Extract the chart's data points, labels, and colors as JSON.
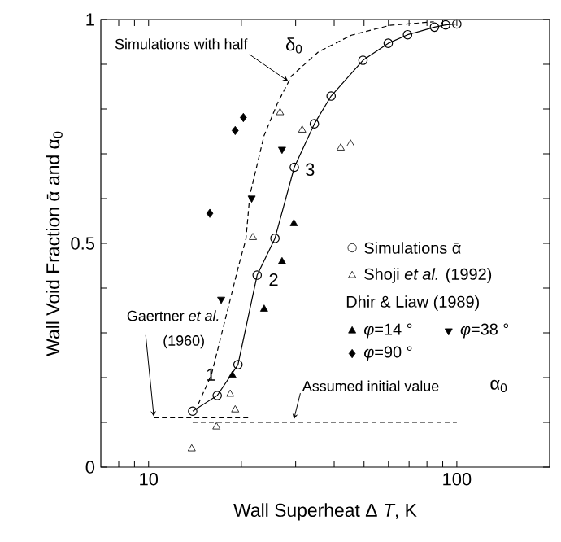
{
  "chart_data": {
    "type": "line",
    "xlabel": "Wall Superheat  Δ *T*, K",
    "ylabel": "Wall Void Fraction   ᾱ and  α$_{0}$",
    "log": "x",
    "xlim": [
      7,
      200
    ],
    "xticks": [
      {
        "value": 8,
        "label": null
      },
      {
        "value": 9,
        "label": null
      },
      10,
      {
        "value": 20,
        "label": null
      },
      {
        "value": 30,
        "label": null
      },
      {
        "value": 40,
        "label": null
      },
      {
        "value": 50,
        "label": null
      },
      {
        "value": 60,
        "label": null
      },
      {
        "value": 70,
        "label": null
      },
      {
        "value": 80,
        "label": null
      },
      {
        "value": 90,
        "label": null
      },
      100
    ],
    "ylim": [
      0,
      1
    ],
    "yticks": [
      0,
      {
        "value": 0.1,
        "label": null
      },
      {
        "value": 0.2,
        "label": null
      },
      {
        "value": 0.3,
        "label": null
      },
      {
        "value": 0.4,
        "label": null
      },
      0.5,
      {
        "value": 0.6,
        "label": null
      },
      {
        "value": 0.7,
        "label": null
      },
      {
        "value": 0.8,
        "label": null
      },
      {
        "value": 0.9,
        "label": null
      },
      1
    ],
    "legend": "right",
    "legend_title": "Dhir & Liaw (1989)",
    "series": [
      {
        "name": "Simulations  ᾱ",
        "marker": "circle",
        "line_style": "solid",
        "color": "#000000",
        "x": [
          13.9,
          16.7,
          19.5,
          22.5,
          25.7,
          29.7,
          34.5,
          39.1,
          49.6,
          59.9,
          69.2,
          84.6,
          92,
          100
        ],
        "values": [
          0.125,
          0.16,
          0.229,
          0.429,
          0.511,
          0.67,
          0.767,
          0.829,
          0.909,
          0.947,
          0.966,
          0.983,
          0.988,
          0.99
        ]
      },
      {
        "name": "Shoji *et al.* (1992)",
        "type": "scatter",
        "marker": "triangle",
        "color": "#000000",
        "x": [
          26.7,
          31.5,
          42,
          45.2,
          21.8,
          18.4,
          19.1,
          16.6,
          13.8
        ],
        "values": [
          0.792,
          0.753,
          0.713,
          0.722,
          0.513,
          0.163,
          0.128,
          0.09,
          0.041
        ]
      },
      {
        "name": "*φ*=14 °",
        "type": "scatter",
        "marker": "triangle",
        "color": "#000000",
        "x": [
          29.6,
          27.1,
          23.7,
          18.7
        ],
        "values": [
          0.544,
          0.459,
          0.353,
          0.205
        ]
      },
      {
        "name": "*φ*=38 °",
        "type": "scatter",
        "marker": "triangle-down",
        "color": "#000000",
        "x": [
          27.1,
          21.6,
          17.2
        ],
        "values": [
          0.71,
          0.601,
          0.375
        ]
      },
      {
        "name": "*φ*=90 °",
        "type": "scatter",
        "marker": "diamond",
        "color": "#000000",
        "x": [
          20.3,
          19.1,
          15.8
        ],
        "values": [
          0.781,
          0.752,
          0.567
        ]
      },
      {
        "marker": "none",
        "line_style": "dashed",
        "color": "#000000",
        "x": [
          14.5,
          16.0,
          17.7,
          19.6,
          20.7,
          21.3,
          23.7,
          26.2,
          29.1,
          35.6,
          45.5,
          60.7,
          84.2
        ],
        "values": [
          0.141,
          0.207,
          0.328,
          0.45,
          0.51,
          0.607,
          0.741,
          0.813,
          0.874,
          0.928,
          0.965,
          0.987,
          0.995
        ]
      },
      {
        "marker": "none",
        "line_style": "dashed",
        "color": "#000000",
        "x": [
          10.4,
          21.3
        ],
        "values": [
          0.11,
          0.11
        ]
      },
      {
        "marker": "none",
        "line_style": "dashed",
        "color": "#000000",
        "x": [
          13.9,
          100
        ],
        "values": [
          0.1,
          0.1
        ]
      }
    ],
    "annotations": [
      {
        "text": "Simulations with half",
        "x": 28.4,
        "y": 0.862
      },
      "δ$_{0}$",
      {
        "text": "1",
        "x": 16.3,
        "y": 0.185
      },
      "2",
      "3",
      {
        "text": "Gaertner *et al.*",
        "x": 10.4,
        "y": 0.113
      },
      {
        "text": "Assumed initial value",
        "x": 29.6,
        "y": 0.107
      },
      "α$_{0}$",
      "(1960)"
    ]
  }
}
